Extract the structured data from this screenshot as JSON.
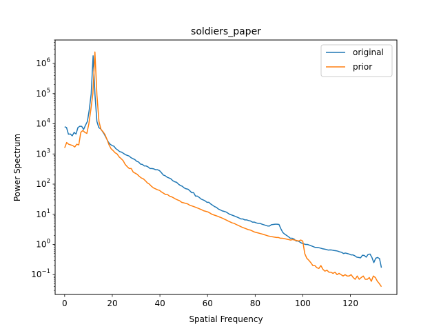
{
  "chart_data": {
    "type": "line",
    "title": "soldiers_paper",
    "xlabel": "Spatial Frequency",
    "ylabel": "Power Spectrum",
    "yscale": "log",
    "xlim": [
      -4,
      139.5
    ],
    "ylim": [
      0.022,
      6000000
    ],
    "xticks": [
      0,
      20,
      40,
      60,
      80,
      100,
      120
    ],
    "yticks": [
      {
        "value": 0.1,
        "base": "10",
        "exp": "−1"
      },
      {
        "value": 1,
        "base": "10",
        "exp": "0"
      },
      {
        "value": 10,
        "base": "10",
        "exp": "1"
      },
      {
        "value": 100,
        "base": "10",
        "exp": "2"
      },
      {
        "value": 1000,
        "base": "10",
        "exp": "3"
      },
      {
        "value": 10000,
        "base": "10",
        "exp": "4"
      },
      {
        "value": 100000,
        "base": "10",
        "exp": "5"
      },
      {
        "value": 1000000,
        "base": "10",
        "exp": "6"
      }
    ],
    "grid": false,
    "legend_position": "top-right",
    "series": [
      {
        "name": "original",
        "color": "#1f77b4",
        "values": [
          8000,
          7500,
          4500,
          4600,
          4000,
          5200,
          4600,
          7500,
          8300,
          8200,
          6500,
          9000,
          12000,
          30000,
          100000,
          1800000,
          90000,
          12000,
          7500,
          6800,
          5500,
          4400,
          3300,
          2500,
          2100,
          1900,
          1800,
          1500,
          1350,
          1200,
          1150,
          1050,
          950,
          900,
          850,
          750,
          700,
          650,
          570,
          540,
          460,
          450,
          400,
          400,
          370,
          330,
          330,
          320,
          300,
          300,
          280,
          240,
          200,
          190,
          170,
          160,
          150,
          130,
          120,
          115,
          100,
          90,
          85,
          75,
          70,
          68,
          60,
          52,
          52,
          40,
          40,
          36,
          32,
          30,
          28,
          25,
          25,
          22,
          20,
          18,
          17,
          15,
          14,
          13,
          12.5,
          12,
          11,
          10,
          9.5,
          9,
          8.5,
          8,
          7.5,
          7,
          7,
          6.5,
          6.5,
          6.2,
          6,
          5.5,
          5.5,
          5.2,
          5,
          5,
          4.7,
          4.5,
          4.3,
          4.1,
          4.1,
          4.5,
          4.6,
          4.7,
          4.7,
          4.6,
          3.3,
          2.5,
          2.2,
          2,
          1.8,
          1.6,
          1.6,
          1.5,
          1.3,
          1.3,
          1.2,
          1.1,
          1.05,
          1.0,
          1.0,
          0.95,
          0.9,
          0.85,
          0.8,
          0.8,
          0.78,
          0.75,
          0.72,
          0.7,
          0.68,
          0.65,
          0.66,
          0.65,
          0.63,
          0.62,
          0.6,
          0.57,
          0.55,
          0.5,
          0.52,
          0.5,
          0.48,
          0.45,
          0.45,
          0.42,
          0.38,
          0.37,
          0.36,
          0.44,
          0.43,
          0.38,
          0.47,
          0.48,
          0.37,
          0.25,
          0.35,
          0.37,
          0.34,
          0.17
        ]
      },
      {
        "name": "prior",
        "color": "#ff7f0e",
        "values": [
          1600,
          2400,
          2100,
          2000,
          1900,
          1700,
          2100,
          2000,
          5200,
          6000,
          5200,
          4800,
          10000,
          30000,
          100000,
          2400000,
          90000,
          12000,
          6500,
          5500,
          4400,
          3000,
          2000,
          1500,
          1300,
          1100,
          1000,
          800,
          700,
          600,
          450,
          380,
          330,
          330,
          250,
          230,
          210,
          180,
          160,
          150,
          130,
          110,
          100,
          85,
          75,
          70,
          65,
          62,
          55,
          50,
          45,
          45,
          40,
          38,
          35,
          32,
          30,
          28,
          25,
          24,
          23,
          22,
          20,
          19,
          18,
          17,
          16,
          15,
          14,
          13,
          12.5,
          12,
          11,
          10,
          9.5,
          9,
          8.5,
          8,
          7.5,
          7,
          6.5,
          6,
          5.6,
          5.2,
          5,
          4.6,
          4.3,
          4,
          3.7,
          3.5,
          3.3,
          3.1,
          3.0,
          2.8,
          2.6,
          2.5,
          2.4,
          2.3,
          2.2,
          2.1,
          2.0,
          1.9,
          1.85,
          1.8,
          1.75,
          1.7,
          1.7,
          1.6,
          1.6,
          1.55,
          1.5,
          1.45,
          1.4,
          1.45,
          1.4,
          1.35,
          1.3,
          1.4,
          1.3,
          0.5,
          0.35,
          0.3,
          0.25,
          0.2,
          0.2,
          0.17,
          0.16,
          0.2,
          0.15,
          0.13,
          0.14,
          0.12,
          0.12,
          0.11,
          0.12,
          0.1,
          0.11,
          0.1,
          0.09,
          0.1,
          0.09,
          0.09,
          0.1,
          0.08,
          0.07,
          0.09,
          0.07,
          0.08,
          0.09,
          0.07,
          0.07,
          0.08,
          0.06,
          0.09,
          0.08,
          0.06,
          0.05,
          0.04
        ]
      }
    ]
  }
}
